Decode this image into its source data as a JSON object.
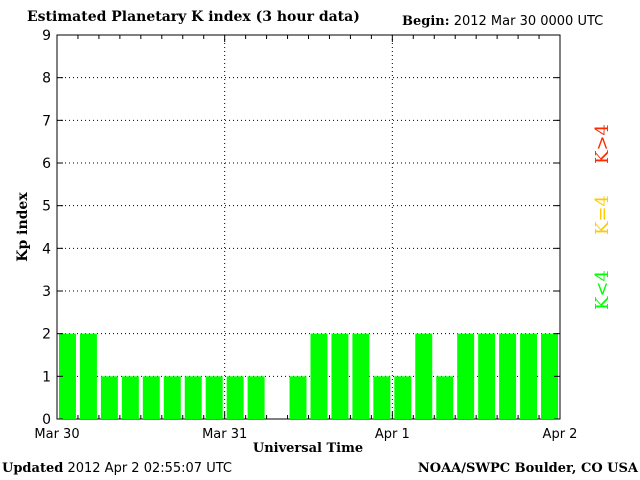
{
  "header": {
    "title": "Estimated Planetary K index (3 hour data)",
    "begin_label": "Begin:",
    "begin_value": "2012 Mar 30 0000 UTC"
  },
  "footer": {
    "updated_label": "Updated",
    "updated_value": "2012 Apr  2 02:55:07 UTC",
    "credit": "NOAA/SWPC Boulder, CO USA"
  },
  "legend": {
    "items": [
      {
        "label": "K>4",
        "color": "#ff2a00"
      },
      {
        "label": "K=4",
        "color": "#ffcc00"
      },
      {
        "label": "K<4",
        "color": "#00ff00"
      }
    ]
  },
  "chart_data": {
    "type": "bar",
    "title": "Estimated Planetary K index (3 hour data)",
    "xlabel": "Universal Time",
    "ylabel": "Kp index",
    "ylim": [
      0,
      9
    ],
    "yticks": [
      0,
      1,
      2,
      3,
      4,
      5,
      6,
      7,
      8,
      9
    ],
    "grid": true,
    "x_tick_labels": [
      "Mar 30",
      "Mar 31",
      "Apr 1",
      "Apr 2"
    ],
    "slots_per_day": 8,
    "values": [
      2,
      2,
      1,
      1,
      1,
      1,
      1,
      1,
      1,
      1,
      0,
      1,
      2,
      2,
      2,
      1,
      1,
      2,
      1,
      2,
      2,
      2,
      2,
      2
    ],
    "bar_color": "#00ff00",
    "legend_placement": "right"
  }
}
